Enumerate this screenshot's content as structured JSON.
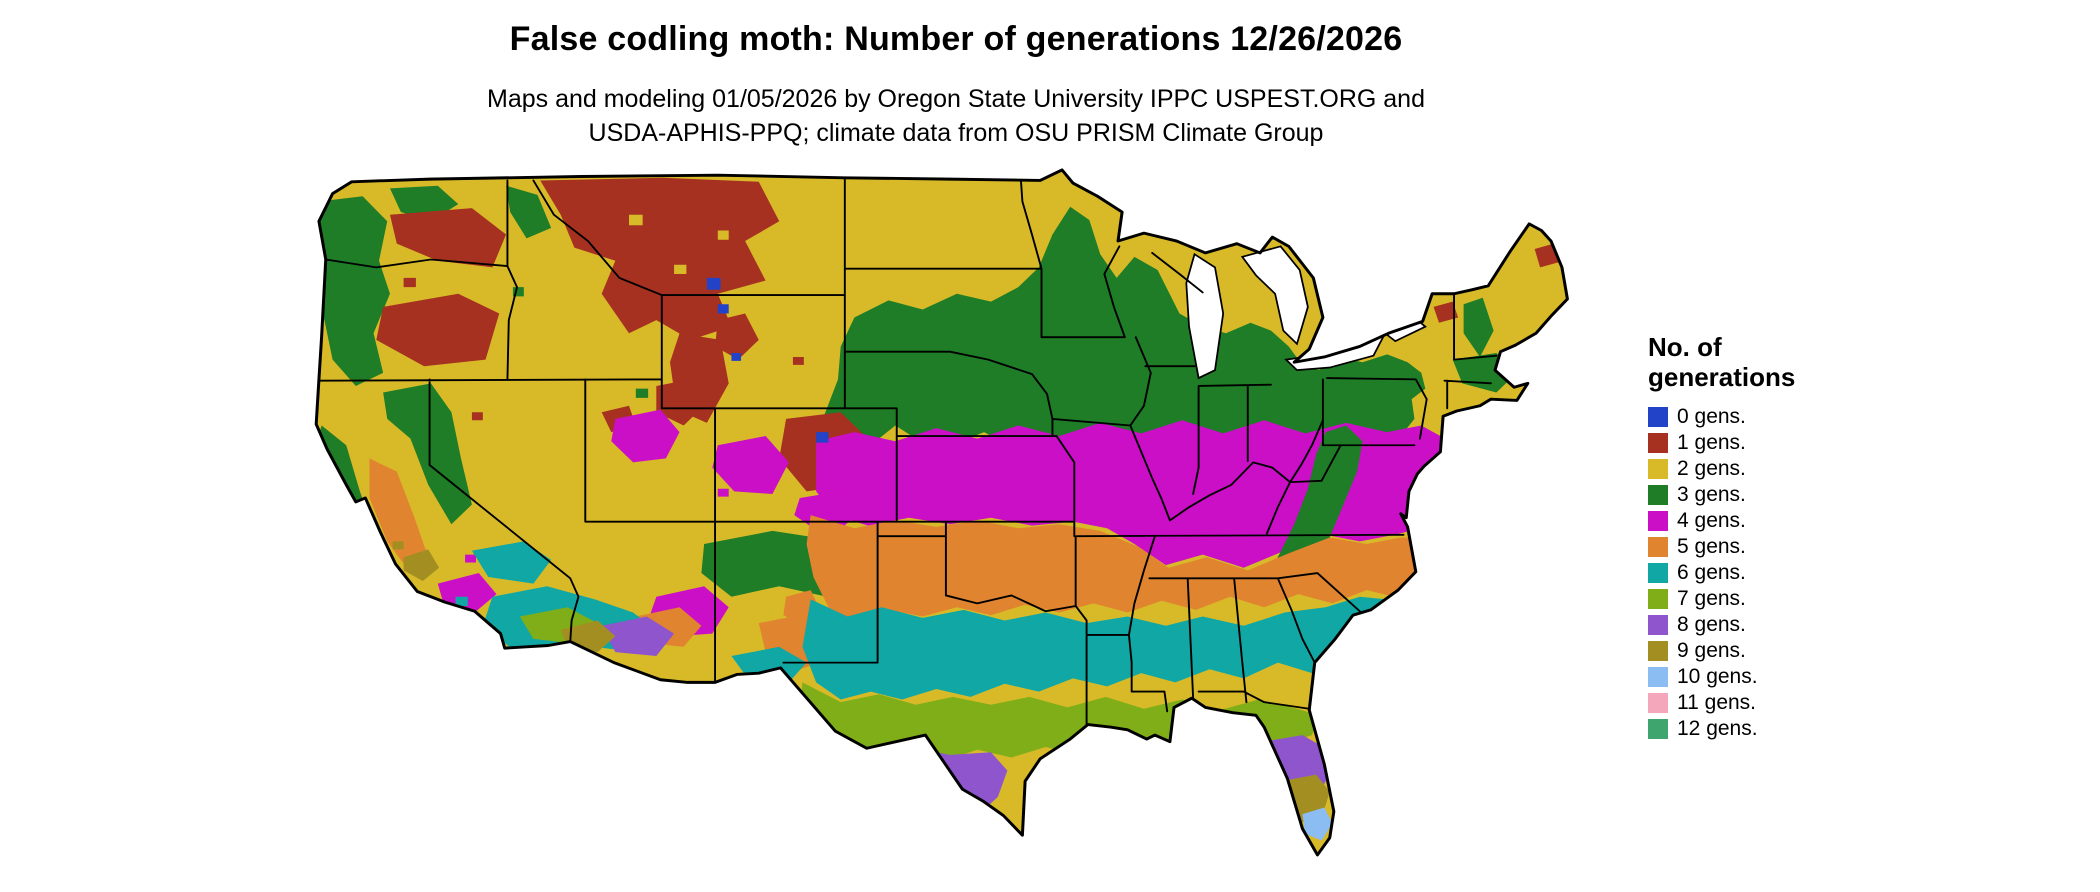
{
  "page": {
    "background": "#ffffff"
  },
  "header": {
    "title": "False codling moth: Number of generations 12/26/2026",
    "subtitle_line1": "Maps and modeling 01/05/2026 by Oregon State University IPPC USPEST.ORG and",
    "subtitle_line2": "USDA-APHIS-PPQ; climate data from OSU PRISM Climate Group"
  },
  "map": {
    "region": "Contiguous United States",
    "outline_color": "#000000",
    "water_color": "#ffffff"
  },
  "legend": {
    "title_line1": "No. of",
    "title_line2": "generations",
    "items": [
      {
        "value": 0,
        "label": "0 gens.",
        "color": "#2243c8"
      },
      {
        "value": 1,
        "label": "1 gens.",
        "color": "#a63121"
      },
      {
        "value": 2,
        "label": "2 gens.",
        "color": "#d8ba28"
      },
      {
        "value": 3,
        "label": "3 gens.",
        "color": "#1e7d26"
      },
      {
        "value": 4,
        "label": "4 gens.",
        "color": "#cb0fc6"
      },
      {
        "value": 5,
        "label": "5 gens.",
        "color": "#e0842f"
      },
      {
        "value": 6,
        "label": "6 gens.",
        "color": "#10a7a4"
      },
      {
        "value": 7,
        "label": "7 gens.",
        "color": "#7fae18"
      },
      {
        "value": 8,
        "label": "8 gens.",
        "color": "#8e55cc"
      },
      {
        "value": 9,
        "label": "9 gens.",
        "color": "#a38e22"
      },
      {
        "value": 10,
        "label": "10 gens.",
        "color": "#8bbcf2"
      },
      {
        "value": 11,
        "label": "11 gens.",
        "color": "#f4a7ba"
      },
      {
        "value": 12,
        "label": "12 gens.",
        "color": "#3ea56f"
      }
    ]
  }
}
